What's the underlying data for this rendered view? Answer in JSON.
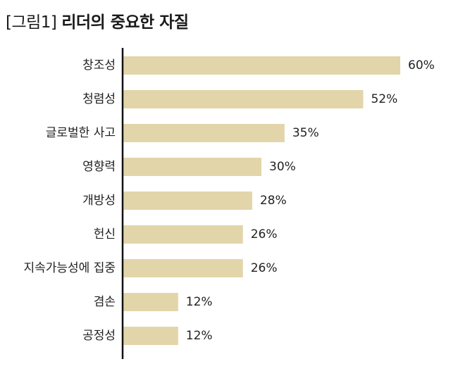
{
  "title": {
    "prefix": "[그림1]",
    "main": "리더의 중요한 자질"
  },
  "colors": {
    "bar": "#e3d5aa",
    "axis": "#111111",
    "text": "#222222"
  },
  "chart_data": {
    "type": "bar",
    "orientation": "horizontal",
    "title": "[그림1] 리더의 중요한 자질",
    "categories": [
      "창조성",
      "청렴성",
      "글로벌한 사고",
      "영향력",
      "개방성",
      "헌신",
      "지속가능성에 집중",
      "겸손",
      "공정성"
    ],
    "values": [
      60,
      52,
      35,
      30,
      28,
      26,
      26,
      12,
      12
    ],
    "value_labels": [
      "60%",
      "52%",
      "35%",
      "30%",
      "28%",
      "26%",
      "26%",
      "12%",
      "12%"
    ],
    "unit": "%",
    "xlim": [
      0,
      70
    ],
    "grid": false,
    "legend": "none"
  }
}
